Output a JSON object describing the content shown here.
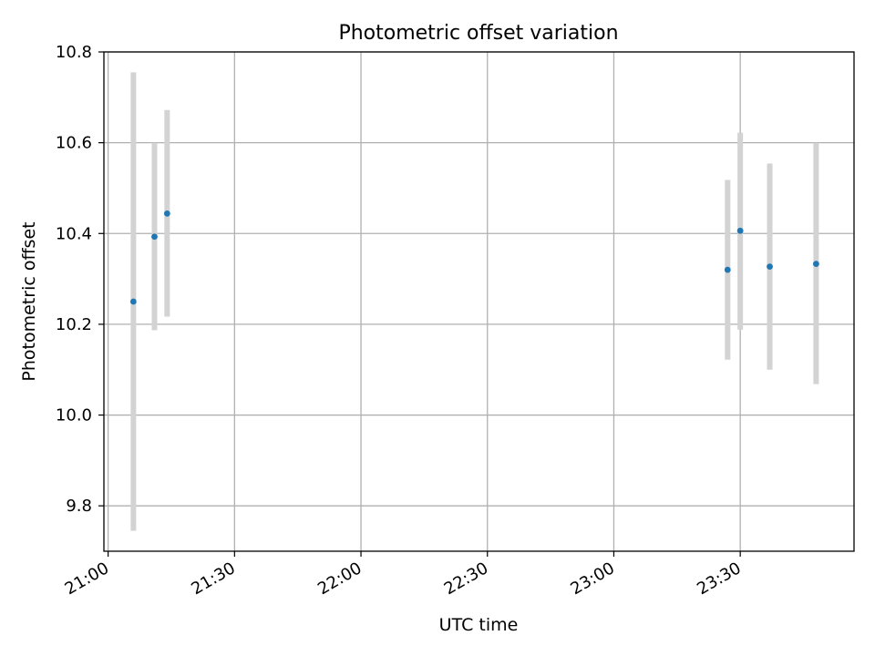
{
  "chart_data": {
    "type": "scatter",
    "title": "Photometric offset variation",
    "xlabel": "UTC time",
    "ylabel": "Photometric offset",
    "x_axis_kind": "time",
    "xlim": [
      "20:59",
      "23:57"
    ],
    "ylim": [
      9.7,
      10.8
    ],
    "x_ticks": [
      "21:00",
      "21:30",
      "22:00",
      "22:30",
      "23:00",
      "23:30"
    ],
    "y_ticks": [
      9.8,
      10.0,
      10.2,
      10.4,
      10.6,
      10.8
    ],
    "x_tick_rotation_deg": 30,
    "grid": true,
    "legend": "none",
    "series": [
      {
        "marker_color": "#1f77b4",
        "errorbar_color": "#d3d3d3",
        "points": [
          {
            "time": "21:06",
            "y": 10.25,
            "yerr_low": 9.745,
            "yerr_high": 10.755
          },
          {
            "time": "21:11",
            "y": 10.393,
            "yerr_low": 10.187,
            "yerr_high": 10.6
          },
          {
            "time": "21:14",
            "y": 10.444,
            "yerr_low": 10.217,
            "yerr_high": 10.672
          },
          {
            "time": "23:27",
            "y": 10.32,
            "yerr_low": 10.122,
            "yerr_high": 10.518
          },
          {
            "time": "23:30",
            "y": 10.406,
            "yerr_low": 10.188,
            "yerr_high": 10.622
          },
          {
            "time": "23:37",
            "y": 10.327,
            "yerr_low": 10.1,
            "yerr_high": 10.554
          },
          {
            "time": "23:48",
            "y": 10.333,
            "yerr_low": 10.068,
            "yerr_high": 10.6
          }
        ]
      }
    ]
  }
}
